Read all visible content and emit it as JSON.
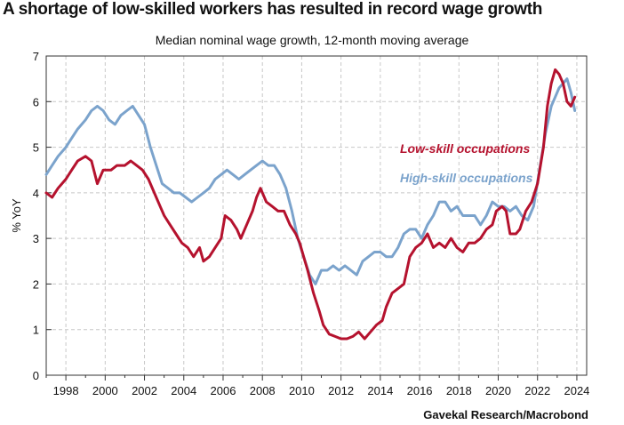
{
  "header": {
    "title": "A shortage of low-skilled workers has resulted in record wage growth",
    "subtitle": "Median nominal wage growth, 12-month moving average"
  },
  "footer": {
    "source": "Gavekal Research/Macrobond"
  },
  "colors": {
    "low_skill": "#b5122e",
    "high_skill": "#7ba3cc",
    "grid": "#c8c8c8"
  },
  "chart_data": {
    "type": "line",
    "ylabel": "% YoY",
    "xlim": [
      1997.0,
      2024.5
    ],
    "ylim": [
      0,
      7
    ],
    "grid": true,
    "x_ticks": [
      1998,
      2000,
      2002,
      2004,
      2006,
      2008,
      2010,
      2012,
      2014,
      2016,
      2018,
      2020,
      2022,
      2024
    ],
    "x_tick_labels": [
      "1998",
      "2000",
      "2002",
      "2004",
      "2006",
      "2008",
      "2010",
      "2012",
      "2014",
      "2016",
      "2018",
      "2020",
      "2022",
      "2024"
    ],
    "y_ticks": [
      0,
      1,
      2,
      3,
      4,
      5,
      6,
      7
    ],
    "y_tick_labels": [
      "0",
      "1",
      "2",
      "3",
      "4",
      "5",
      "6",
      "7"
    ],
    "legend_placement": "inline-right",
    "series": [
      {
        "name": "Low-skill occupations",
        "color": "#b5122e",
        "points": [
          [
            1997.0,
            4.0
          ],
          [
            1997.3,
            3.9
          ],
          [
            1997.6,
            4.1
          ],
          [
            1998.0,
            4.3
          ],
          [
            1998.3,
            4.5
          ],
          [
            1998.6,
            4.7
          ],
          [
            1999.0,
            4.8
          ],
          [
            1999.3,
            4.7
          ],
          [
            1999.6,
            4.2
          ],
          [
            1999.9,
            4.5
          ],
          [
            2000.3,
            4.5
          ],
          [
            2000.6,
            4.6
          ],
          [
            2001.0,
            4.6
          ],
          [
            2001.3,
            4.7
          ],
          [
            2001.6,
            4.6
          ],
          [
            2001.9,
            4.5
          ],
          [
            2002.2,
            4.3
          ],
          [
            2002.5,
            4.0
          ],
          [
            2002.8,
            3.7
          ],
          [
            2003.0,
            3.5
          ],
          [
            2003.3,
            3.3
          ],
          [
            2003.6,
            3.1
          ],
          [
            2003.9,
            2.9
          ],
          [
            2004.2,
            2.8
          ],
          [
            2004.5,
            2.6
          ],
          [
            2004.8,
            2.8
          ],
          [
            2005.0,
            2.5
          ],
          [
            2005.3,
            2.6
          ],
          [
            2005.6,
            2.8
          ],
          [
            2005.9,
            3.0
          ],
          [
            2006.1,
            3.5
          ],
          [
            2006.4,
            3.4
          ],
          [
            2006.7,
            3.2
          ],
          [
            2006.9,
            3.0
          ],
          [
            2007.2,
            3.3
          ],
          [
            2007.5,
            3.6
          ],
          [
            2007.7,
            3.9
          ],
          [
            2007.9,
            4.1
          ],
          [
            2008.2,
            3.8
          ],
          [
            2008.5,
            3.7
          ],
          [
            2008.8,
            3.6
          ],
          [
            2009.1,
            3.6
          ],
          [
            2009.4,
            3.3
          ],
          [
            2009.7,
            3.1
          ],
          [
            2009.9,
            2.9
          ],
          [
            2010.1,
            2.6
          ],
          [
            2010.3,
            2.3
          ],
          [
            2010.6,
            1.8
          ],
          [
            2010.9,
            1.4
          ],
          [
            2011.1,
            1.1
          ],
          [
            2011.4,
            0.9
          ],
          [
            2011.7,
            0.85
          ],
          [
            2012.0,
            0.8
          ],
          [
            2012.3,
            0.8
          ],
          [
            2012.6,
            0.85
          ],
          [
            2012.9,
            0.95
          ],
          [
            2013.2,
            0.8
          ],
          [
            2013.5,
            0.95
          ],
          [
            2013.8,
            1.1
          ],
          [
            2014.1,
            1.2
          ],
          [
            2014.3,
            1.5
          ],
          [
            2014.6,
            1.8
          ],
          [
            2014.9,
            1.9
          ],
          [
            2015.2,
            2.0
          ],
          [
            2015.5,
            2.6
          ],
          [
            2015.8,
            2.8
          ],
          [
            2016.1,
            2.9
          ],
          [
            2016.4,
            3.1
          ],
          [
            2016.7,
            2.8
          ],
          [
            2017.0,
            2.9
          ],
          [
            2017.3,
            2.8
          ],
          [
            2017.6,
            3.0
          ],
          [
            2017.9,
            2.8
          ],
          [
            2018.2,
            2.7
          ],
          [
            2018.5,
            2.9
          ],
          [
            2018.8,
            2.9
          ],
          [
            2019.1,
            3.0
          ],
          [
            2019.4,
            3.2
          ],
          [
            2019.7,
            3.3
          ],
          [
            2019.9,
            3.6
          ],
          [
            2020.2,
            3.7
          ],
          [
            2020.4,
            3.6
          ],
          [
            2020.6,
            3.1
          ],
          [
            2020.9,
            3.1
          ],
          [
            2021.1,
            3.2
          ],
          [
            2021.4,
            3.6
          ],
          [
            2021.7,
            3.8
          ],
          [
            2022.0,
            4.2
          ],
          [
            2022.3,
            5.0
          ],
          [
            2022.5,
            5.9
          ],
          [
            2022.7,
            6.4
          ],
          [
            2022.9,
            6.7
          ],
          [
            2023.1,
            6.6
          ],
          [
            2023.3,
            6.4
          ],
          [
            2023.5,
            6.0
          ],
          [
            2023.7,
            5.9
          ],
          [
            2023.9,
            6.1
          ]
        ]
      },
      {
        "name": "High-skill occupations",
        "color": "#7ba3cc",
        "points": [
          [
            1997.0,
            4.4
          ],
          [
            1997.3,
            4.6
          ],
          [
            1997.6,
            4.8
          ],
          [
            1998.0,
            5.0
          ],
          [
            1998.3,
            5.2
          ],
          [
            1998.6,
            5.4
          ],
          [
            1999.0,
            5.6
          ],
          [
            1999.3,
            5.8
          ],
          [
            1999.6,
            5.9
          ],
          [
            1999.9,
            5.8
          ],
          [
            2000.2,
            5.6
          ],
          [
            2000.5,
            5.5
          ],
          [
            2000.8,
            5.7
          ],
          [
            2001.1,
            5.8
          ],
          [
            2001.4,
            5.9
          ],
          [
            2001.7,
            5.7
          ],
          [
            2002.0,
            5.5
          ],
          [
            2002.3,
            5.0
          ],
          [
            2002.6,
            4.6
          ],
          [
            2002.9,
            4.2
          ],
          [
            2003.2,
            4.1
          ],
          [
            2003.5,
            4.0
          ],
          [
            2003.8,
            4.0
          ],
          [
            2004.1,
            3.9
          ],
          [
            2004.4,
            3.8
          ],
          [
            2004.7,
            3.9
          ],
          [
            2005.0,
            4.0
          ],
          [
            2005.3,
            4.1
          ],
          [
            2005.6,
            4.3
          ],
          [
            2005.9,
            4.4
          ],
          [
            2006.2,
            4.5
          ],
          [
            2006.5,
            4.4
          ],
          [
            2006.8,
            4.3
          ],
          [
            2007.1,
            4.4
          ],
          [
            2007.4,
            4.5
          ],
          [
            2007.7,
            4.6
          ],
          [
            2008.0,
            4.7
          ],
          [
            2008.3,
            4.6
          ],
          [
            2008.6,
            4.6
          ],
          [
            2008.9,
            4.4
          ],
          [
            2009.2,
            4.1
          ],
          [
            2009.5,
            3.6
          ],
          [
            2009.8,
            3.0
          ],
          [
            2010.1,
            2.6
          ],
          [
            2010.4,
            2.2
          ],
          [
            2010.7,
            2.0
          ],
          [
            2011.0,
            2.3
          ],
          [
            2011.3,
            2.3
          ],
          [
            2011.6,
            2.4
          ],
          [
            2011.9,
            2.3
          ],
          [
            2012.2,
            2.4
          ],
          [
            2012.5,
            2.3
          ],
          [
            2012.8,
            2.2
          ],
          [
            2013.1,
            2.5
          ],
          [
            2013.4,
            2.6
          ],
          [
            2013.7,
            2.7
          ],
          [
            2014.0,
            2.7
          ],
          [
            2014.3,
            2.6
          ],
          [
            2014.6,
            2.6
          ],
          [
            2014.9,
            2.8
          ],
          [
            2015.2,
            3.1
          ],
          [
            2015.5,
            3.2
          ],
          [
            2015.8,
            3.2
          ],
          [
            2016.1,
            3.0
          ],
          [
            2016.4,
            3.3
          ],
          [
            2016.7,
            3.5
          ],
          [
            2017.0,
            3.8
          ],
          [
            2017.3,
            3.8
          ],
          [
            2017.6,
            3.6
          ],
          [
            2017.9,
            3.7
          ],
          [
            2018.2,
            3.5
          ],
          [
            2018.5,
            3.5
          ],
          [
            2018.8,
            3.5
          ],
          [
            2019.1,
            3.3
          ],
          [
            2019.4,
            3.5
          ],
          [
            2019.7,
            3.8
          ],
          [
            2020.0,
            3.7
          ],
          [
            2020.3,
            3.7
          ],
          [
            2020.6,
            3.6
          ],
          [
            2020.9,
            3.7
          ],
          [
            2021.2,
            3.5
          ],
          [
            2021.5,
            3.4
          ],
          [
            2021.8,
            3.7
          ],
          [
            2022.1,
            4.5
          ],
          [
            2022.4,
            5.3
          ],
          [
            2022.7,
            5.9
          ],
          [
            2022.9,
            6.1
          ],
          [
            2023.1,
            6.3
          ],
          [
            2023.3,
            6.4
          ],
          [
            2023.5,
            6.5
          ],
          [
            2023.7,
            6.2
          ],
          [
            2023.9,
            5.8
          ]
        ]
      }
    ]
  }
}
